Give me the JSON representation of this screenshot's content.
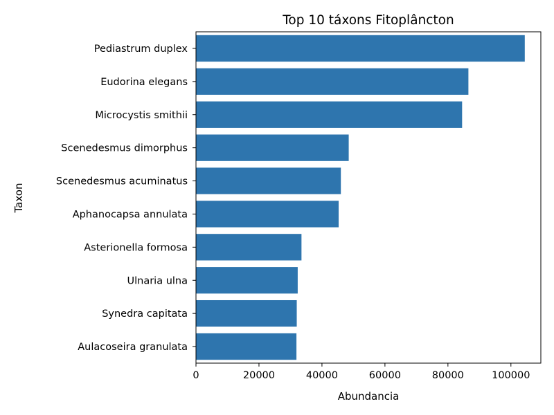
{
  "chart_data": {
    "type": "bar",
    "orientation": "horizontal",
    "title": "Top 10 táxons Fitoplâncton",
    "xlabel": "Abundancia",
    "ylabel": "Taxon",
    "categories": [
      "Pediastrum duplex",
      "Eudorina elegans",
      "Microcystis smithii",
      "Scenedesmus dimorphus",
      "Scenedesmus acuminatus",
      "Aphanocapsa annulata",
      "Asterionella formosa",
      "Ulnaria ulna",
      "Synedra capitata",
      "Aulacoseira granulata"
    ],
    "values": [
      104400,
      86500,
      84500,
      48500,
      46000,
      45300,
      33500,
      32300,
      32000,
      31900
    ],
    "xlim": [
      0,
      109500
    ],
    "xticks": [
      0,
      20000,
      40000,
      60000,
      80000,
      100000
    ],
    "xtick_labels": [
      "0",
      "20000",
      "40000",
      "60000",
      "80000",
      "100000"
    ],
    "bar_color": "#2e75ae",
    "grid": false
  }
}
